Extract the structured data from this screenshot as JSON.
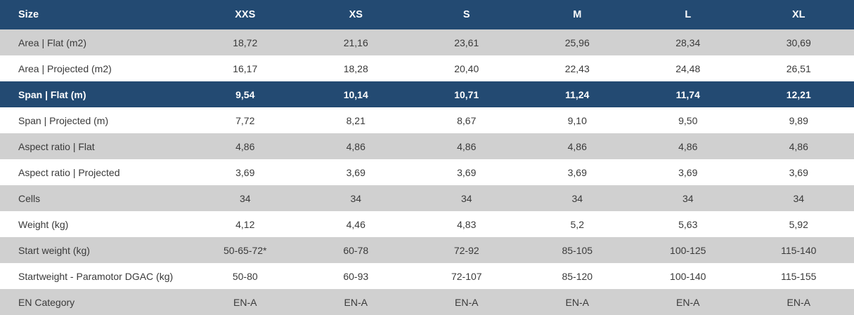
{
  "table": {
    "header": {
      "label": "Size",
      "sizes": [
        "XXS",
        "XS",
        "S",
        "M",
        "L",
        "XL"
      ]
    },
    "rows": [
      {
        "label": "Area | Flat (m2)",
        "values": [
          "18,72",
          "21,16",
          "23,61",
          "25,96",
          "28,34",
          "30,69"
        ]
      },
      {
        "label": "Area | Projected (m2)",
        "values": [
          "16,17",
          "18,28",
          "20,40",
          "22,43",
          "24,48",
          "26,51"
        ]
      },
      {
        "label": "Span | Flat (m)",
        "values": [
          "9,54",
          "10,14",
          "10,71",
          "11,24",
          "11,74",
          "12,21"
        ]
      },
      {
        "label": "Span | Projected (m)",
        "values": [
          "7,72",
          "8,21",
          "8,67",
          "9,10",
          "9,50",
          "9,89"
        ]
      },
      {
        "label": "Aspect ratio | Flat",
        "values": [
          "4,86",
          "4,86",
          "4,86",
          "4,86",
          "4,86",
          "4,86"
        ]
      },
      {
        "label": "Aspect ratio | Projected",
        "values": [
          "3,69",
          "3,69",
          "3,69",
          "3,69",
          "3,69",
          "3,69"
        ]
      },
      {
        "label": "Cells",
        "values": [
          "34",
          "34",
          "34",
          "34",
          "34",
          "34"
        ]
      },
      {
        "label": "Weight (kg)",
        "values": [
          "4,12",
          "4,46",
          "4,83",
          "5,2",
          "5,63",
          "5,92"
        ]
      },
      {
        "label": "Start weight (kg)",
        "values": [
          "50-65-72*",
          "60-78",
          "72-92",
          "85-105",
          "100-125",
          "115-140"
        ]
      },
      {
        "label": "Startweight - Paramotor DGAC (kg)",
        "values": [
          "50-80",
          "60-93",
          "72-107",
          "85-120",
          "100-140",
          "115-155"
        ]
      },
      {
        "label": "EN Category",
        "values": [
          "EN-A",
          "EN-A",
          "EN-A",
          "EN-A",
          "EN-A",
          "EN-A"
        ]
      }
    ]
  },
  "colors": {
    "header_bg": "#234a72",
    "alt_row_bg": "#d0d0d0",
    "plain_row_bg": "#ffffff",
    "text": "#3a3a3a"
  }
}
